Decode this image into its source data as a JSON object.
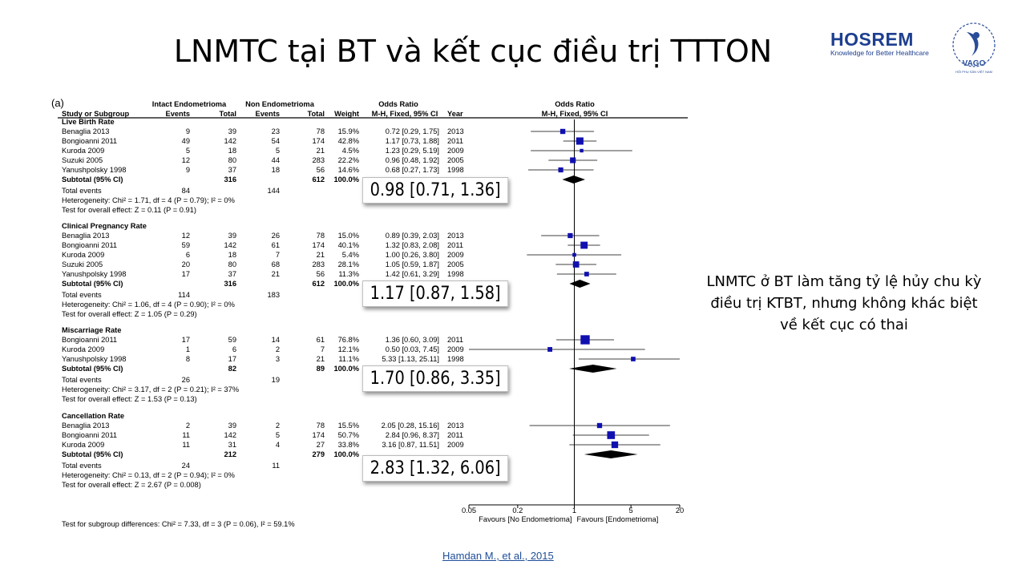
{
  "slide": {
    "title": "LNMTC tại BT và kết cục điều trị TTTON",
    "side_note": "LNMTC ở BT làm tăng tỷ lệ hủy chu kỳ điều trị KTBT, nhưng không khác biệt về kết cục có thai",
    "citation": "Hamdan M., et al., 2015"
  },
  "logos": {
    "hosrem_name": "HOSREM",
    "hosrem_tagline": "Knowledge for Better Healthcare",
    "vago_name": "VAGO",
    "vago_sub": "HỘI PHỤ SẢN VIỆT NAM",
    "brand_color": "#1d3f8f"
  },
  "callouts": {
    "live_birth": "0.98 [0.71, 1.36]",
    "clinical_pregnancy": "1.17 [0.87, 1.58]",
    "miscarriage": "1.70 [0.86, 3.35]",
    "cancellation": "2.83 [1.32, 6.06]"
  },
  "chart_data": {
    "type": "forest",
    "panel_label": "(a)",
    "group_headers": [
      "Intact Endometrioma",
      "Non Endometrioma",
      "Odds Ratio",
      "Odds Ratio"
    ],
    "columns": [
      "Study or Subgroup",
      "Events",
      "Total",
      "Events",
      "Total",
      "Weight",
      "M-H, Fixed, 95% CI",
      "Year",
      "M-H, Fixed, 95% CI"
    ],
    "x_scale": "log",
    "xlim": [
      0.05,
      20
    ],
    "x_ticks": [
      0.05,
      0.2,
      1,
      5,
      20
    ],
    "x_tick_labels": [
      "0.05",
      "0.2",
      "1",
      "5",
      "20"
    ],
    "favours_left": "Favours [No Endometrioma]",
    "favours_right": "Favours [Endometrioma]",
    "square_color": "#1010b0",
    "subgroups": [
      {
        "name": "Live Birth Rate",
        "studies": [
          {
            "study": "Benaglia 2013",
            "e1": "9",
            "n1": "39",
            "e2": "23",
            "n2": "78",
            "weight": "15.9%",
            "ci_text": "0.72 [0.29, 1.75]",
            "year": "2013",
            "or": 0.72,
            "lo": 0.29,
            "hi": 1.75
          },
          {
            "study": "Bongioanni 2011",
            "e1": "49",
            "n1": "142",
            "e2": "54",
            "n2": "174",
            "weight": "42.8%",
            "ci_text": "1.17 [0.73, 1.88]",
            "year": "2011",
            "or": 1.17,
            "lo": 0.73,
            "hi": 1.88
          },
          {
            "study": "Kuroda 2009",
            "e1": "5",
            "n1": "18",
            "e2": "5",
            "n2": "21",
            "weight": "4.5%",
            "ci_text": "1.23 [0.29, 5.19]",
            "year": "2009",
            "or": 1.23,
            "lo": 0.29,
            "hi": 5.19
          },
          {
            "study": "Suzuki 2005",
            "e1": "12",
            "n1": "80",
            "e2": "44",
            "n2": "283",
            "weight": "22.2%",
            "ci_text": "0.96 [0.48, 1.92]",
            "year": "2005",
            "or": 0.96,
            "lo": 0.48,
            "hi": 1.92
          },
          {
            "study": "Yanushpolsky 1998",
            "e1": "9",
            "n1": "37",
            "e2": "18",
            "n2": "56",
            "weight": "14.6%",
            "ci_text": "0.68 [0.27, 1.73]",
            "year": "1998",
            "or": 0.68,
            "lo": 0.27,
            "hi": 1.73
          }
        ],
        "subtotal": {
          "label": "Subtotal (95% CI)",
          "n1": "316",
          "n2": "612",
          "weight": "100.0%",
          "or": 0.98,
          "lo": 0.71,
          "hi": 1.36
        },
        "total_events": {
          "label": "Total events",
          "e1": "84",
          "e2": "144"
        },
        "heterogeneity": "Heterogeneity: Chi² = 1.71, df = 4 (P = 0.79); I² = 0%",
        "overall_effect": "Test for overall effect: Z = 0.11 (P = 0.91)"
      },
      {
        "name": "Clinical Pregnancy Rate",
        "studies": [
          {
            "study": "Benaglia 2013",
            "e1": "12",
            "n1": "39",
            "e2": "26",
            "n2": "78",
            "weight": "15.0%",
            "ci_text": "0.89 [0.39, 2.03]",
            "year": "2013",
            "or": 0.89,
            "lo": 0.39,
            "hi": 2.03
          },
          {
            "study": "Bongioanni 2011",
            "e1": "59",
            "n1": "142",
            "e2": "61",
            "n2": "174",
            "weight": "40.1%",
            "ci_text": "1.32 [0.83, 2.08]",
            "year": "2011",
            "or": 1.32,
            "lo": 0.83,
            "hi": 2.08
          },
          {
            "study": "Kuroda 2009",
            "e1": "6",
            "n1": "18",
            "e2": "7",
            "n2": "21",
            "weight": "5.4%",
            "ci_text": "1.00 [0.26, 3.80]",
            "year": "2009",
            "or": 1.0,
            "lo": 0.26,
            "hi": 3.8
          },
          {
            "study": "Suzuki 2005",
            "e1": "20",
            "n1": "80",
            "e2": "68",
            "n2": "283",
            "weight": "28.1%",
            "ci_text": "1.05 [0.59, 1.87]",
            "year": "2005",
            "or": 1.05,
            "lo": 0.59,
            "hi": 1.87
          },
          {
            "study": "Yanushpolsky 1998",
            "e1": "17",
            "n1": "37",
            "e2": "21",
            "n2": "56",
            "weight": "11.3%",
            "ci_text": "1.42 [0.61, 3.29]",
            "year": "1998",
            "or": 1.42,
            "lo": 0.61,
            "hi": 3.29
          }
        ],
        "subtotal": {
          "label": "Subtotal (95% CI)",
          "n1": "316",
          "n2": "612",
          "weight": "100.0%",
          "or": 1.17,
          "lo": 0.87,
          "hi": 1.58
        },
        "total_events": {
          "label": "Total events",
          "e1": "114",
          "e2": "183"
        },
        "heterogeneity": "Heterogeneity: Chi² = 1.06, df = 4 (P = 0.90); I² = 0%",
        "overall_effect": "Test for overall effect: Z = 1.05 (P = 0.29)"
      },
      {
        "name": "Miscarriage Rate",
        "studies": [
          {
            "study": "Bongioanni 2011",
            "e1": "17",
            "n1": "59",
            "e2": "14",
            "n2": "61",
            "weight": "76.8%",
            "ci_text": "1.36 [0.60, 3.09]",
            "year": "2011",
            "or": 1.36,
            "lo": 0.6,
            "hi": 3.09
          },
          {
            "study": "Kuroda 2009",
            "e1": "1",
            "n1": "6",
            "e2": "2",
            "n2": "7",
            "weight": "12.1%",
            "ci_text": "0.50 [0.03, 7.45]",
            "year": "2009",
            "or": 0.5,
            "lo": 0.03,
            "hi": 7.45
          },
          {
            "study": "Yanushpolsky 1998",
            "e1": "8",
            "n1": "17",
            "e2": "3",
            "n2": "21",
            "weight": "11.1%",
            "ci_text": "5.33 [1.13, 25.11]",
            "year": "1998",
            "or": 5.33,
            "lo": 1.13,
            "hi": 25.11
          }
        ],
        "subtotal": {
          "label": "Subtotal (95% CI)",
          "n1": "82",
          "n2": "89",
          "weight": "100.0%",
          "or": 1.7,
          "lo": 0.86,
          "hi": 3.35
        },
        "total_events": {
          "label": "Total events",
          "e1": "26",
          "e2": "19"
        },
        "heterogeneity": "Heterogeneity: Chi² = 3.17, df = 2 (P = 0.21); I² = 37%",
        "overall_effect": "Test for overall effect: Z = 1.53 (P = 0.13)"
      },
      {
        "name": "Cancellation Rate",
        "studies": [
          {
            "study": "Benaglia 2013",
            "e1": "2",
            "n1": "39",
            "e2": "2",
            "n2": "78",
            "weight": "15.5%",
            "ci_text": "2.05 [0.28, 15.16]",
            "year": "2013",
            "or": 2.05,
            "lo": 0.28,
            "hi": 15.16
          },
          {
            "study": "Bongioanni 2011",
            "e1": "11",
            "n1": "142",
            "e2": "5",
            "n2": "174",
            "weight": "50.7%",
            "ci_text": "2.84 [0.96, 8.37]",
            "year": "2011",
            "or": 2.84,
            "lo": 0.96,
            "hi": 8.37
          },
          {
            "study": "Kuroda 2009",
            "e1": "11",
            "n1": "31",
            "e2": "4",
            "n2": "27",
            "weight": "33.8%",
            "ci_text": "3.16 [0.87, 11.51]",
            "year": "2009",
            "or": 3.16,
            "lo": 0.87,
            "hi": 11.51
          }
        ],
        "subtotal": {
          "label": "Subtotal (95% CI)",
          "n1": "212",
          "n2": "279",
          "weight": "100.0%",
          "or": 2.83,
          "lo": 1.32,
          "hi": 6.06
        },
        "total_events": {
          "label": "Total events",
          "e1": "24",
          "e2": "11"
        },
        "heterogeneity": "Heterogeneity: Chi² = 0.13, df = 2 (P = 0.94); I² = 0%",
        "overall_effect": "Test for overall effect: Z = 2.67 (P = 0.008)"
      }
    ],
    "subgroup_differences": "Test for subgroup differences: Chi² = 7.33, df = 3 (P = 0.06), I² = 59.1%"
  }
}
